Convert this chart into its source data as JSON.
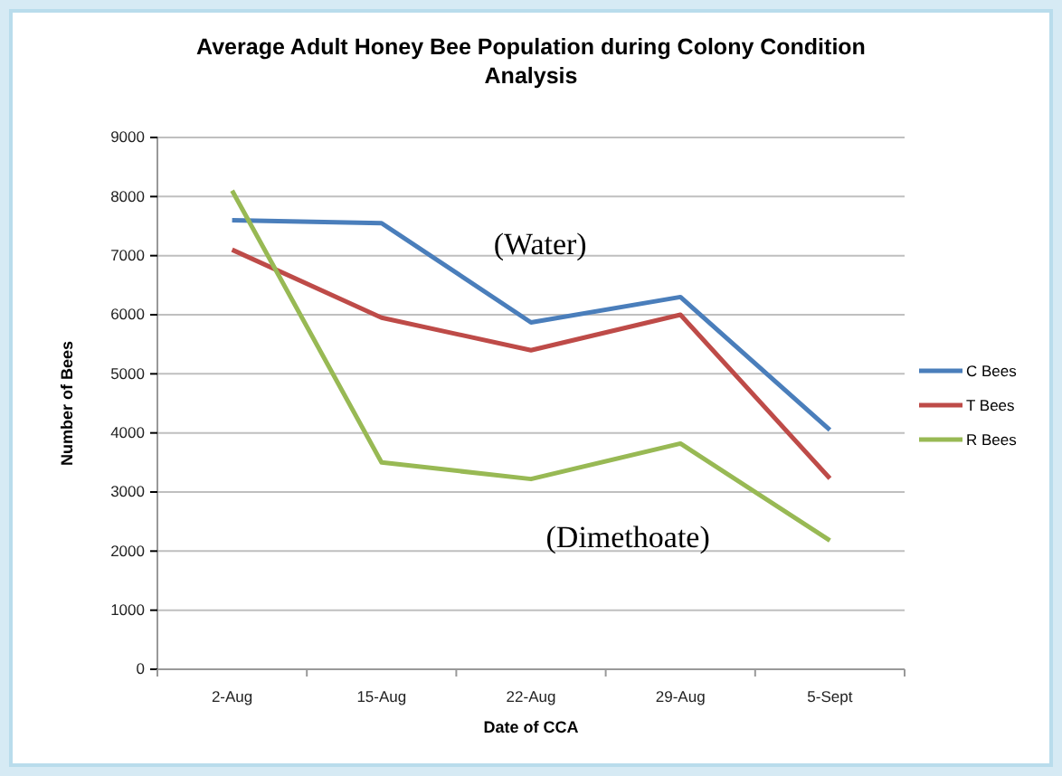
{
  "chart_data": {
    "type": "line",
    "title": "Average Adult Honey Bee Population during Colony Condition Analysis",
    "xlabel": "Date of CCA",
    "ylabel": "Number of Bees",
    "categories": [
      "2-Aug",
      "15-Aug",
      "22-Aug",
      "29-Aug",
      "5-Sept"
    ],
    "series": [
      {
        "name": "C Bees",
        "color": "#4a7ebb",
        "values": [
          7600,
          7550,
          5870,
          6300,
          4050
        ]
      },
      {
        "name": "T Bees",
        "color": "#be4b48",
        "values": [
          7100,
          5950,
          5400,
          6000,
          3230
        ]
      },
      {
        "name": "R Bees",
        "color": "#98b954",
        "values": [
          8100,
          3500,
          3220,
          3820,
          2180
        ]
      }
    ],
    "ylim": [
      0,
      9000
    ],
    "yticks": [
      0,
      1000,
      2000,
      3000,
      4000,
      5000,
      6000,
      7000,
      8000,
      9000
    ],
    "grid": "y",
    "legend": "right",
    "marker": "none",
    "line_style": "solid",
    "annotations": [
      "(Water)",
      "(Dimethoate)"
    ]
  }
}
